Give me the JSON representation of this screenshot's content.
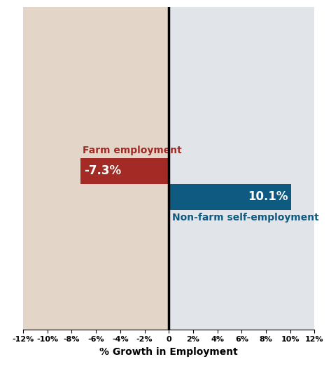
{
  "chart_data": {
    "type": "bar",
    "orientation": "horizontal",
    "categories": [
      "Farm employment",
      "Non-farm self-employment"
    ],
    "values": [
      -7.3,
      10.1
    ],
    "value_labels": [
      "-7.3%",
      "10.1%"
    ],
    "data_labels": true,
    "colors": [
      "#a32a25",
      "#0f5a80"
    ],
    "xlabel": "% Growth in Employment",
    "xlim": [
      -12,
      12
    ],
    "xticks": [
      {
        "value": -12,
        "label": "-12%"
      },
      {
        "value": -10,
        "label": "-10%"
      },
      {
        "value": -8,
        "label": "-8%"
      },
      {
        "value": -6,
        "label": "-6%"
      },
      {
        "value": -4,
        "label": "-4%"
      },
      {
        "value": -2,
        "label": "-2%"
      },
      0,
      {
        "value": 2,
        "label": "2%"
      },
      {
        "value": 4,
        "label": "4%"
      },
      {
        "value": 6,
        "label": "6%"
      },
      {
        "value": 8,
        "label": "8%"
      },
      {
        "value": 10,
        "label": "10%"
      },
      {
        "value": 12,
        "label": "12%"
      }
    ],
    "tick_labels": "x"
  }
}
